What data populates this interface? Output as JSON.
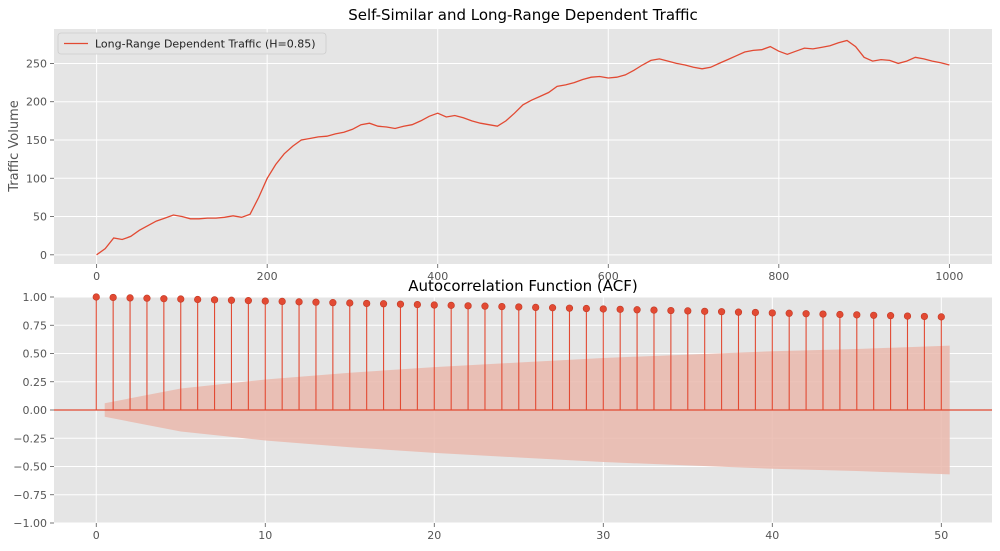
{
  "colors": {
    "series": "#e24a33",
    "panel_bg": "#e5e5e5",
    "band": "#eab8ad",
    "grid": "#ffffff"
  },
  "chart_data": [
    {
      "type": "line",
      "title": "Self-Similar and Long-Range Dependent Traffic",
      "xlabel": "",
      "ylabel": "Traffic Volume",
      "xlim": [
        -50,
        1050
      ],
      "ylim": [
        -12,
        295
      ],
      "xticks": [
        0,
        200,
        400,
        600,
        800,
        1000
      ],
      "yticks": [
        0,
        50,
        100,
        150,
        200,
        250
      ],
      "grid": true,
      "legend_position": "top-left",
      "series": [
        {
          "name": "Long-Range Dependent Traffic (H=0.85)",
          "x": [
            0,
            10,
            20,
            30,
            40,
            50,
            60,
            70,
            80,
            90,
            100,
            110,
            120,
            130,
            140,
            150,
            160,
            170,
            180,
            190,
            200,
            210,
            220,
            230,
            240,
            250,
            260,
            270,
            280,
            290,
            300,
            310,
            320,
            330,
            340,
            350,
            360,
            370,
            380,
            390,
            400,
            410,
            420,
            430,
            440,
            450,
            460,
            470,
            480,
            490,
            500,
            510,
            520,
            530,
            540,
            550,
            560,
            570,
            580,
            590,
            600,
            610,
            620,
            630,
            640,
            650,
            660,
            670,
            680,
            690,
            700,
            710,
            720,
            730,
            740,
            750,
            760,
            770,
            780,
            790,
            800,
            810,
            820,
            830,
            840,
            850,
            860,
            870,
            880,
            890,
            900,
            910,
            920,
            930,
            940,
            950,
            960,
            970,
            980,
            990,
            1000
          ],
          "values": [
            0,
            8,
            22,
            20,
            24,
            32,
            38,
            44,
            48,
            52,
            50,
            47,
            47,
            48,
            48,
            49,
            51,
            49,
            53,
            75,
            100,
            118,
            132,
            142,
            150,
            152,
            154,
            155,
            158,
            160,
            164,
            170,
            172,
            168,
            167,
            165,
            168,
            170,
            175,
            181,
            185,
            180,
            182,
            179,
            175,
            172,
            170,
            168,
            175,
            185,
            196,
            202,
            207,
            212,
            220,
            222,
            225,
            229,
            232,
            233,
            231,
            232,
            235,
            241,
            248,
            254,
            256,
            253,
            250,
            248,
            245,
            243,
            245,
            250,
            255,
            260,
            265,
            267,
            268,
            272,
            266,
            262,
            266,
            270,
            269,
            271,
            273,
            277,
            280,
            272,
            258,
            253,
            255,
            254,
            250,
            253,
            258,
            256,
            253,
            251,
            248
          ]
        }
      ]
    },
    {
      "type": "stem",
      "title": "Autocorrelation Function (ACF)",
      "xlabel": "",
      "ylabel": "",
      "xlim": [
        -2.5,
        53
      ],
      "ylim": [
        -1.0,
        1.0
      ],
      "xticks": [
        0,
        10,
        20,
        30,
        40,
        50
      ],
      "yticks": [
        "1.00",
        "0.75",
        "0.50",
        "0.25",
        "0.00",
        "−0.25",
        "−0.50",
        "−0.75",
        "−1.00"
      ],
      "grid": true,
      "lags": [
        0,
        1,
        2,
        3,
        4,
        5,
        6,
        7,
        8,
        9,
        10,
        11,
        12,
        13,
        14,
        15,
        16,
        17,
        18,
        19,
        20,
        21,
        22,
        23,
        24,
        25,
        26,
        27,
        28,
        29,
        30,
        31,
        32,
        33,
        34,
        35,
        36,
        37,
        38,
        39,
        40,
        41,
        42,
        43,
        44,
        45,
        46,
        47,
        48,
        49,
        50
      ],
      "values": [
        1.0,
        0.996,
        0.992,
        0.989,
        0.985,
        0.982,
        0.978,
        0.975,
        0.971,
        0.968,
        0.964,
        0.961,
        0.957,
        0.954,
        0.95,
        0.947,
        0.943,
        0.94,
        0.936,
        0.933,
        0.929,
        0.926,
        0.922,
        0.919,
        0.915,
        0.912,
        0.908,
        0.905,
        0.901,
        0.898,
        0.894,
        0.891,
        0.887,
        0.884,
        0.88,
        0.877,
        0.873,
        0.87,
        0.866,
        0.863,
        0.859,
        0.856,
        0.852,
        0.849,
        0.845,
        0.842,
        0.838,
        0.835,
        0.831,
        0.828,
        0.824
      ],
      "confidence_band": {
        "x": [
          0.5,
          5,
          10,
          15,
          20,
          25,
          30,
          35,
          40,
          45,
          50.5
        ],
        "upper": [
          0.06,
          0.19,
          0.27,
          0.33,
          0.38,
          0.42,
          0.46,
          0.49,
          0.52,
          0.54,
          0.57
        ],
        "lower": [
          -0.06,
          -0.19,
          -0.27,
          -0.33,
          -0.38,
          -0.42,
          -0.46,
          -0.49,
          -0.52,
          -0.54,
          -0.57
        ]
      }
    }
  ]
}
